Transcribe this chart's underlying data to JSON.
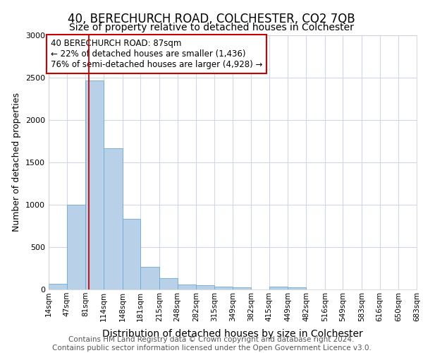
{
  "title": "40, BERECHURCH ROAD, COLCHESTER, CO2 7QB",
  "subtitle": "Size of property relative to detached houses in Colchester",
  "xlabel": "Distribution of detached houses by size in Colchester",
  "ylabel": "Number of detached properties",
  "bar_values": [
    70,
    1000,
    2470,
    1670,
    830,
    270,
    130,
    55,
    50,
    35,
    25,
    0,
    35,
    25,
    0,
    0,
    0,
    0,
    0,
    0
  ],
  "bin_edges": [
    14,
    47,
    81,
    114,
    148,
    181,
    215,
    248,
    282,
    315,
    349,
    382,
    415,
    449,
    482,
    516,
    549,
    583,
    616,
    650,
    683
  ],
  "tick_labels": [
    "14sqm",
    "47sqm",
    "81sqm",
    "114sqm",
    "148sqm",
    "181sqm",
    "215sqm",
    "248sqm",
    "282sqm",
    "315sqm",
    "349sqm",
    "382sqm",
    "415sqm",
    "449sqm",
    "482sqm",
    "516sqm",
    "549sqm",
    "583sqm",
    "616sqm",
    "650sqm",
    "683sqm"
  ],
  "bar_color": "#b8d0e8",
  "bar_edge_color": "#6aaad4",
  "red_line_x": 87,
  "annotation_text": "40 BERECHURCH ROAD: 87sqm\n← 22% of detached houses are smaller (1,436)\n76% of semi-detached houses are larger (4,928) →",
  "annotation_box_color": "#ffffff",
  "annotation_box_edge": "#cc0000",
  "ylim": [
    0,
    3000
  ],
  "yticks": [
    0,
    500,
    1000,
    1500,
    2000,
    2500,
    3000
  ],
  "footer_text": "Contains HM Land Registry data © Crown copyright and database right 2024.\nContains public sector information licensed under the Open Government Licence v3.0.",
  "title_fontsize": 12,
  "subtitle_fontsize": 10,
  "xlabel_fontsize": 10,
  "ylabel_fontsize": 9,
  "tick_fontsize": 7.5,
  "annotation_fontsize": 8.5,
  "footer_fontsize": 7.5,
  "background_color": "#ffffff",
  "grid_color": "#d0d8e8"
}
